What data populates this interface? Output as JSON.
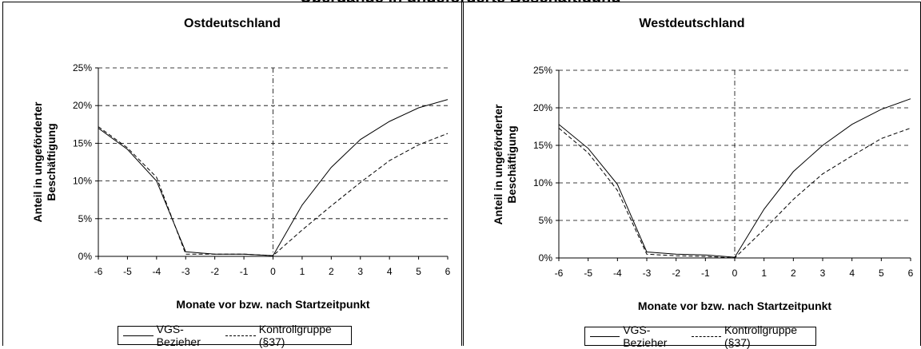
{
  "header": {
    "partial_title": "Übergänge in ungeförderte Beschäftigung"
  },
  "legend": {
    "solid_label": "VGS-Bezieher",
    "dashed_label": "Kontrollgruppe (§37)"
  },
  "chart_data": [
    {
      "type": "line",
      "title": "Ostdeutschland",
      "xlabel": "Monate vor bzw. nach Startzeitpunkt",
      "ylabel_line1": "Anteil in ungeförderter",
      "ylabel_line2": "Beschäftigung",
      "x": [
        -6,
        -5,
        -4,
        -3,
        -2,
        -1,
        0,
        1,
        2,
        3,
        4,
        5,
        6
      ],
      "xticks": [
        "-6",
        "-5",
        "-4",
        "-3",
        "-2",
        "-1",
        "0",
        "1",
        "2",
        "3",
        "4",
        "5",
        "6"
      ],
      "ylim": [
        0,
        25
      ],
      "yticks": [
        "0%",
        "5%",
        "10%",
        "15%",
        "20%",
        "25%"
      ],
      "series": [
        {
          "name": "VGS-Bezieher",
          "style": "solid",
          "values": [
            17.0,
            14.2,
            10.0,
            0.6,
            0.3,
            0.3,
            0.1,
            6.8,
            11.8,
            15.5,
            17.9,
            19.7,
            20.8
          ]
        },
        {
          "name": "Kontrollgruppe (§37)",
          "style": "dashed",
          "values": [
            17.2,
            14.4,
            10.5,
            0.3,
            0.3,
            0.3,
            0.1,
            3.5,
            6.7,
            9.8,
            12.7,
            14.8,
            16.3
          ]
        }
      ],
      "grid": true,
      "vline_at": 0
    },
    {
      "type": "line",
      "title": "Westdeutschland",
      "xlabel": "Monate vor bzw. nach Startzeitpunkt",
      "ylabel_line1": "Anteil in ungeförderter",
      "ylabel_line2": "Beschäftigung",
      "x": [
        -6,
        -5,
        -4,
        -3,
        -2,
        -1,
        0,
        1,
        2,
        3,
        4,
        5,
        6
      ],
      "xticks": [
        "-6",
        "-5",
        "-4",
        "-3",
        "-2",
        "-1",
        "0",
        "1",
        "2",
        "3",
        "4",
        "5",
        "6"
      ],
      "ylim": [
        0,
        25
      ],
      "yticks": [
        "0%",
        "5%",
        "10%",
        "15%",
        "20%",
        "25%"
      ],
      "series": [
        {
          "name": "VGS-Bezieher",
          "style": "solid",
          "values": [
            17.8,
            14.6,
            9.8,
            0.8,
            0.5,
            0.4,
            0.1,
            6.5,
            11.5,
            15.0,
            17.8,
            19.8,
            21.2
          ]
        },
        {
          "name": "Kontrollgruppe (§37)",
          "style": "dashed",
          "values": [
            17.3,
            14.0,
            9.0,
            0.5,
            0.3,
            0.2,
            0.0,
            3.8,
            7.8,
            11.2,
            13.6,
            15.9,
            17.3
          ]
        }
      ],
      "grid": true,
      "vline_at": 0
    }
  ]
}
